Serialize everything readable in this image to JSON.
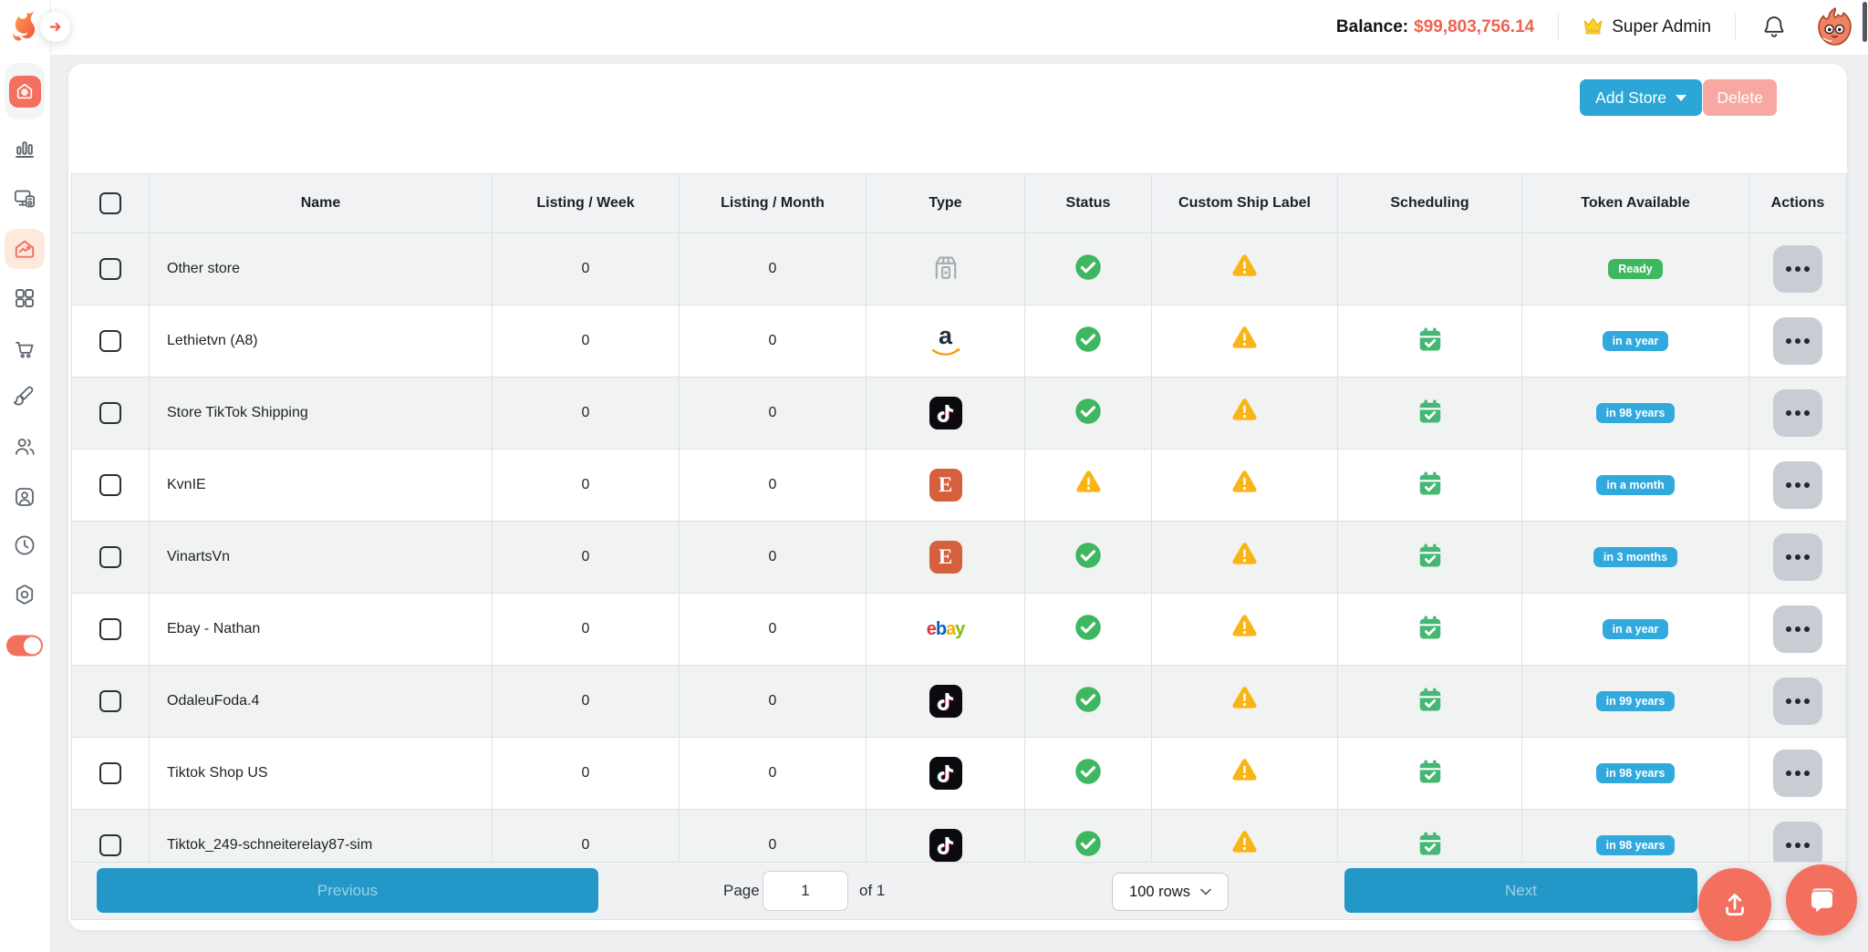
{
  "topbar": {
    "balance_label": "Balance:",
    "balance_value": "$99,803,756.14",
    "role": "Super Admin"
  },
  "toolbar": {
    "add_store_label": "Add Store",
    "delete_label": "Delete"
  },
  "sidebar": {
    "items": [
      {
        "icon": "dashboard-home-icon",
        "variant": "red-button"
      },
      {
        "icon": "bar-chart-icon",
        "variant": "plain"
      },
      {
        "icon": "devices-icon",
        "variant": "plain"
      },
      {
        "icon": "home-analytics-icon",
        "variant": "active-highlight"
      },
      {
        "icon": "grid-icon",
        "variant": "plain"
      },
      {
        "icon": "cart-icon",
        "variant": "plain"
      },
      {
        "icon": "brush-icon",
        "variant": "plain"
      },
      {
        "icon": "users-icon",
        "variant": "plain"
      },
      {
        "icon": "id-card-icon",
        "variant": "plain"
      },
      {
        "icon": "clock-icon",
        "variant": "plain"
      },
      {
        "icon": "settings-icon",
        "variant": "plain"
      },
      {
        "icon": "toggle-on-icon",
        "variant": "toggle"
      }
    ]
  },
  "table": {
    "columns": [
      "Name",
      "Listing / Week",
      "Listing / Month",
      "Type",
      "Status",
      "Custom Ship Label",
      "Scheduling",
      "Token Available",
      "Actions"
    ],
    "rows": [
      {
        "name": "Other store",
        "listing_week": "0",
        "listing_month": "0",
        "type": "other-store",
        "status": "ok",
        "custom_ship_label": "warning",
        "scheduling": "",
        "token": "Ready",
        "token_color": "green"
      },
      {
        "name": "Lethietvn (A8)",
        "listing_week": "0",
        "listing_month": "0",
        "type": "amazon",
        "status": "ok",
        "custom_ship_label": "warning",
        "scheduling": "calendar",
        "token": "in a year",
        "token_color": "blue"
      },
      {
        "name": "Store TikTok Shipping",
        "listing_week": "0",
        "listing_month": "0",
        "type": "tiktok",
        "status": "ok",
        "custom_ship_label": "warning",
        "scheduling": "calendar",
        "token": "in 98 years",
        "token_color": "blue"
      },
      {
        "name": "KvnIE",
        "listing_week": "0",
        "listing_month": "0",
        "type": "etsy",
        "status": "warning",
        "custom_ship_label": "warning",
        "scheduling": "calendar",
        "token": "in a month",
        "token_color": "blue"
      },
      {
        "name": "VinartsVn",
        "listing_week": "0",
        "listing_month": "0",
        "type": "etsy",
        "status": "ok",
        "custom_ship_label": "warning",
        "scheduling": "calendar",
        "token": "in 3 months",
        "token_color": "blue"
      },
      {
        "name": "Ebay - Nathan",
        "listing_week": "0",
        "listing_month": "0",
        "type": "ebay",
        "status": "ok",
        "custom_ship_label": "warning",
        "scheduling": "calendar",
        "token": "in a year",
        "token_color": "blue"
      },
      {
        "name": "OdaleuFoda.4",
        "listing_week": "0",
        "listing_month": "0",
        "type": "tiktok",
        "status": "ok",
        "custom_ship_label": "warning",
        "scheduling": "calendar",
        "token": "in 99 years",
        "token_color": "blue"
      },
      {
        "name": "Tiktok Shop US",
        "listing_week": "0",
        "listing_month": "0",
        "type": "tiktok",
        "status": "ok",
        "custom_ship_label": "warning",
        "scheduling": "calendar",
        "token": "in 98 years",
        "token_color": "blue"
      },
      {
        "name": "Tiktok_249-schneiterelay87-sim",
        "listing_week": "0",
        "listing_month": "0",
        "type": "tiktok",
        "status": "ok",
        "custom_ship_label": "warning",
        "scheduling": "calendar",
        "token": "in 98 years",
        "token_color": "blue"
      }
    ]
  },
  "pagination": {
    "previous_label": "Previous",
    "page_label": "Page",
    "page_value": "1",
    "of_label": "of 1",
    "rows_per_page": "100 rows",
    "next_label": "Next"
  },
  "colors": {
    "accent_blue": "#2ba6d6",
    "pager_blue": "#2398c8",
    "token_blue": "#31a9dd",
    "success_green": "#3eb761",
    "warning_amber": "#f9b515",
    "brand_salmon": "#f4705e",
    "delete_pink": "#f7a8a3",
    "balance_red": "#ee6352"
  }
}
